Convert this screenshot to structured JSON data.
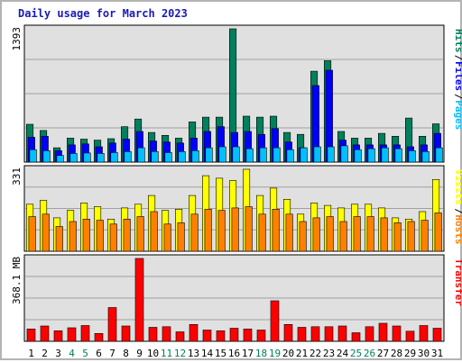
{
  "title": "Daily usage for March 2023",
  "colors": {
    "hits": "#00805c",
    "files": "#0000ff",
    "pages": "#00c0ff",
    "visits": "#ffff00",
    "hosts": "#ff8000",
    "transfer": "#ff0000",
    "weekend_label": "#00805c",
    "weekday_label": "#000000"
  },
  "chart_data": [
    {
      "type": "bar",
      "name": "usage",
      "axis_max_label": "1393",
      "ymax": 1393,
      "right_labels": [
        "Hits",
        "Files",
        "Pages"
      ],
      "x": [
        "1",
        "2",
        "3",
        "4",
        "5",
        "6",
        "7",
        "8",
        "9",
        "10",
        "11",
        "12",
        "13",
        "14",
        "15",
        "16",
        "17",
        "18",
        "19",
        "20",
        "21",
        "22",
        "23",
        "24",
        "25",
        "26",
        "27",
        "28",
        "29",
        "30",
        "31"
      ],
      "weekend_days": [
        "4",
        "5",
        "11",
        "12",
        "18",
        "19",
        "25",
        "26"
      ],
      "series": [
        {
          "name": "Hits",
          "values": [
            395,
            330,
            150,
            250,
            240,
            230,
            245,
            370,
            450,
            310,
            280,
            250,
            420,
            470,
            470,
            1393,
            480,
            470,
            480,
            310,
            290,
            950,
            1060,
            320,
            250,
            250,
            300,
            270,
            460,
            270,
            400
          ]
        },
        {
          "name": "Files",
          "values": [
            260,
            270,
            120,
            180,
            190,
            160,
            200,
            240,
            320,
            220,
            210,
            200,
            250,
            320,
            370,
            310,
            320,
            290,
            350,
            210,
            150,
            800,
            960,
            230,
            180,
            180,
            180,
            180,
            160,
            180,
            300
          ]
        },
        {
          "name": "Pages",
          "values": [
            130,
            120,
            70,
            90,
            95,
            90,
            100,
            110,
            150,
            110,
            100,
            110,
            120,
            150,
            160,
            160,
            140,
            150,
            150,
            130,
            150,
            160,
            160,
            170,
            130,
            140,
            150,
            140,
            120,
            110,
            150
          ]
        }
      ]
    },
    {
      "type": "bar",
      "name": "visits",
      "axis_max_label": "331",
      "ymax": 331,
      "right_labels": [
        "Visits",
        "Hosts"
      ],
      "x": [
        "1",
        "2",
        "3",
        "4",
        "5",
        "6",
        "7",
        "8",
        "9",
        "10",
        "11",
        "12",
        "13",
        "14",
        "15",
        "16",
        "17",
        "18",
        "19",
        "20",
        "21",
        "22",
        "23",
        "24",
        "25",
        "26",
        "27",
        "28",
        "29",
        "30",
        "31"
      ],
      "series": [
        {
          "name": "Visits",
          "values": [
            190,
            205,
            135,
            165,
            195,
            180,
            130,
            175,
            190,
            225,
            165,
            170,
            225,
            305,
            295,
            285,
            331,
            225,
            255,
            210,
            150,
            195,
            185,
            175,
            190,
            190,
            175,
            135,
            130,
            160,
            290
          ]
        },
        {
          "name": "Hosts",
          "values": [
            140,
            150,
            100,
            120,
            130,
            125,
            110,
            130,
            140,
            160,
            110,
            115,
            150,
            170,
            165,
            175,
            180,
            150,
            170,
            150,
            120,
            135,
            140,
            120,
            140,
            140,
            135,
            115,
            120,
            125,
            155
          ]
        }
      ]
    },
    {
      "type": "bar",
      "name": "transfer",
      "axis_max_label": "368.1 MB",
      "ymax": 368.1,
      "right_labels": [
        "Transfer"
      ],
      "x": [
        "1",
        "2",
        "3",
        "4",
        "5",
        "6",
        "7",
        "8",
        "9",
        "10",
        "11",
        "12",
        "13",
        "14",
        "15",
        "16",
        "17",
        "18",
        "19",
        "20",
        "21",
        "22",
        "23",
        "24",
        "25",
        "26",
        "27",
        "28",
        "29",
        "30",
        "31"
      ],
      "series": [
        {
          "name": "Transfer",
          "values": [
            55,
            68,
            47,
            60,
            70,
            35,
            150,
            68,
            368.1,
            62,
            65,
            42,
            75,
            50,
            47,
            58,
            55,
            50,
            180,
            75,
            62,
            65,
            65,
            68,
            38,
            65,
            80,
            68,
            45,
            70,
            58
          ]
        }
      ]
    }
  ]
}
